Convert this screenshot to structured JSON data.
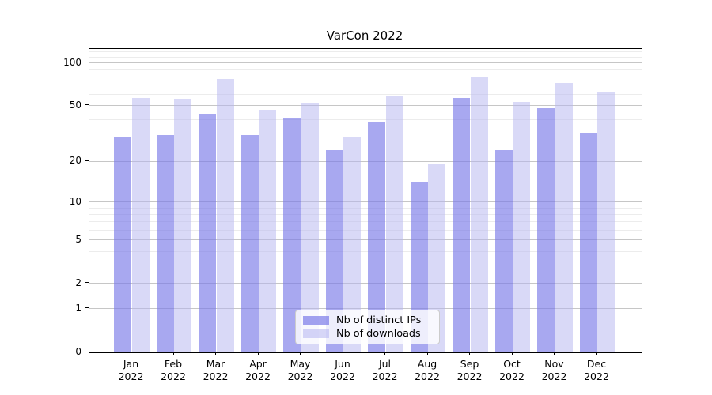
{
  "chart_data": {
    "type": "bar",
    "title": "VarCon 2022",
    "categories": [
      "Jan",
      "Feb",
      "Mar",
      "Apr",
      "May",
      "Jun",
      "Jul",
      "Aug",
      "Sep",
      "Oct",
      "Nov",
      "Dec"
    ],
    "category_year": "2022",
    "series": [
      {
        "name": "Nb of distinct IPs",
        "color": "#7a7ae8",
        "alpha": 0.65,
        "values": [
          30,
          31,
          44,
          31,
          41,
          24,
          38,
          14,
          57,
          24,
          48,
          32
        ]
      },
      {
        "name": "Nb of downloads",
        "color": "#b4b4f0",
        "alpha": 0.5,
        "values": [
          57,
          56,
          77,
          47,
          52,
          30,
          58,
          19,
          80,
          53,
          72,
          62
        ]
      }
    ],
    "xlabel": "",
    "ylabel": "",
    "yscale": "log1p",
    "ylim": [
      0,
      125
    ],
    "yticks_major": [
      100,
      50,
      20,
      10,
      5,
      2,
      1,
      0
    ],
    "yticks_minor": [
      3,
      4,
      6,
      7,
      8,
      9,
      30,
      40,
      60,
      70,
      80,
      90,
      110,
      120
    ],
    "grid": "both",
    "legend_position": "lower center",
    "colors": {
      "bar_distinct_ips_apparent": "#a8a8f0",
      "bar_downloads_apparent": "#d9d9f7",
      "major_grid": "#c6c6c6",
      "minor_grid": "#ececec",
      "spine": "#000000",
      "text": "#000000"
    }
  }
}
